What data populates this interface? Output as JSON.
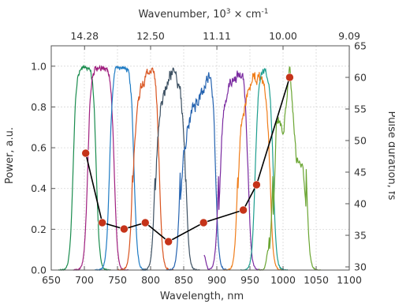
{
  "chart_data": {
    "type": "line",
    "xlabel": "Wavelength, nm",
    "ylabel": "Power, a.u.",
    "y2label": "Pulse duration, fs",
    "x2label_parts": {
      "base": "Wavenumber, 10",
      "sup1": "3",
      "mid": " × cm",
      "sup2": "-1"
    },
    "xlim": [
      650,
      1100
    ],
    "ylim": [
      0,
      1.1
    ],
    "y2lim": [
      29.5,
      65
    ],
    "xticks": [
      "650",
      "700",
      "750",
      "800",
      "850",
      "900",
      "950",
      "1000",
      "1050",
      "1100"
    ],
    "yticks": [
      "0.0",
      "0.2",
      "0.4",
      "0.6",
      "0.8",
      "1.0"
    ],
    "y2ticks": [
      "30",
      "35",
      "40",
      "45",
      "50",
      "55",
      "60",
      "65"
    ],
    "x2ticks": [
      {
        "label": "14.28",
        "wavelength": 700.3
      },
      {
        "label": "12.50",
        "wavelength": 800
      },
      {
        "label": "11.11",
        "wavelength": 900.1
      },
      {
        "label": "10.00",
        "wavelength": 1000
      },
      {
        "label": "9.09",
        "wavelength": 1100.1
      }
    ],
    "grid": true,
    "legend": "none",
    "spectra": [
      {
        "color": "#1a8c4e",
        "low": 683,
        "high": 718,
        "peak": 1.0,
        "noise": 0.03,
        "fine": []
      },
      {
        "color": "#a0207f",
        "low": 705,
        "high": 745,
        "peak": 1.0,
        "noise": 0.04,
        "fine": []
      },
      {
        "color": "#1e7bc4",
        "low": 738,
        "high": 775,
        "peak": 1.0,
        "noise": 0.03,
        "fine": []
      },
      {
        "color": "#d9531e",
        "low": 773,
        "high": 813,
        "peak": 1.0,
        "noise": 0.05,
        "fine": [
          [
            778,
            0.82
          ],
          [
            786,
            0.9
          ],
          [
            800,
            1.0
          ]
        ]
      },
      {
        "color": "#3d5163",
        "low": 807,
        "high": 853,
        "peak": 1.0,
        "noise": 0.06,
        "fine": [
          [
            812,
            0.78
          ],
          [
            825,
            0.92
          ],
          [
            835,
            1.0
          ],
          [
            848,
            0.85
          ]
        ]
      },
      {
        "color": "#2563b0",
        "low": 845,
        "high": 898,
        "peak": 1.0,
        "noise": 0.06,
        "fine": [
          [
            850,
            0.62
          ],
          [
            865,
            0.8
          ],
          [
            880,
            0.88
          ],
          [
            890,
            1.0
          ]
        ]
      },
      {
        "color": "#7a2aa0",
        "low": 903,
        "high": 947,
        "peak": 1.0,
        "noise": 0.05,
        "fine": [
          [
            880,
            0.07
          ],
          [
            886,
            0.11
          ],
          [
            891,
            0.06
          ],
          [
            909,
            0.8
          ],
          [
            920,
            0.92
          ],
          [
            940,
            0.98
          ]
        ]
      },
      {
        "color": "#f07d1a",
        "low": 932,
        "high": 980,
        "peak": 1.0,
        "noise": 0.06,
        "fine": [
          [
            940,
            0.8
          ],
          [
            955,
            0.96
          ],
          [
            970,
            0.93
          ]
        ]
      },
      {
        "color": "#1e9e8f",
        "low": 958,
        "high": 985,
        "peak": 0.98,
        "noise": 0.03,
        "fine": []
      },
      {
        "color": "#6aa532",
        "low": 985,
        "high": 1035,
        "peak": 1.0,
        "noise": 0.04,
        "fine": [
          [
            978,
            0.1
          ],
          [
            990,
            0.8
          ],
          [
            1000,
            0.66
          ],
          [
            1010,
            1.0
          ],
          [
            1020,
            0.55
          ]
        ]
      }
    ],
    "pulse_series": {
      "name": "",
      "color": "#c53319",
      "line_color": "#000000",
      "x": [
        702,
        727,
        760,
        792,
        827,
        880,
        940,
        960,
        1010
      ],
      "y": [
        48.0,
        37.0,
        36.0,
        37.0,
        34.0,
        37.0,
        39.0,
        43.0,
        60.0
      ]
    }
  }
}
